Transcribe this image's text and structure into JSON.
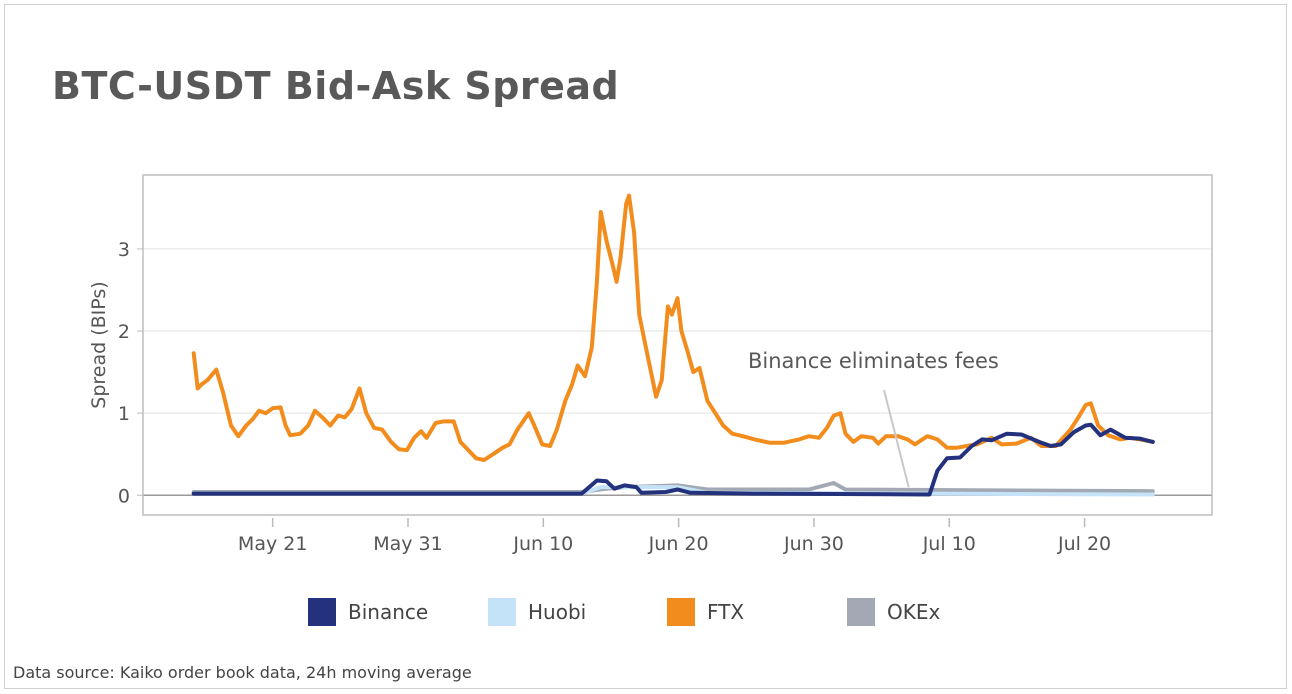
{
  "title": "BTC-USDT Bid-Ask Spread",
  "footer": "Data source: Kaiko order book data, 24h moving average",
  "chart_data": {
    "type": "line",
    "title": "BTC-USDT Bid-Ask Spread",
    "ylabel": "Spread (BIPs)",
    "xlabel": "",
    "ylim": [
      -0.24,
      3.9
    ],
    "xlim": [
      "05-11 10:00",
      "07-29 10:00"
    ],
    "yticks": [
      0,
      1,
      2,
      3
    ],
    "xticks": [
      {
        "date": "05-21 00:00",
        "label": "May 21"
      },
      {
        "date": "05-31 00:00",
        "label": "May 31"
      },
      {
        "date": "06-10 00:00",
        "label": "Jun 10"
      },
      {
        "date": "06-20 00:00",
        "label": "Jun 20"
      },
      {
        "date": "06-30 00:00",
        "label": "Jun 30"
      },
      {
        "date": "07-10 00:00",
        "label": "Jul 10"
      },
      {
        "date": "07-20 00:00",
        "label": "Jul 20"
      }
    ],
    "grid": "horizontal",
    "legend_position": "bottom",
    "annotation": {
      "text": "Binance eliminates fees",
      "date": "07-07 00:00",
      "value": 0.05
    },
    "series": [
      {
        "name": "Binance",
        "color": "#24317d",
        "points": [
          [
            "05-15 04:00",
            0.02
          ],
          [
            "06-12 20:00",
            0.02
          ],
          [
            "06-13 23:00",
            0.18
          ],
          [
            "06-14 16:00",
            0.17
          ],
          [
            "06-15 06:00",
            0.08
          ],
          [
            "06-16 00:00",
            0.12
          ],
          [
            "06-16 21:00",
            0.1
          ],
          [
            "06-17 06:00",
            0.03
          ],
          [
            "06-19 01:00",
            0.04
          ],
          [
            "06-19 22:00",
            0.07
          ],
          [
            "06-20 21:00",
            0.03
          ],
          [
            "06-25 15:00",
            0.02
          ],
          [
            "07-08 13:00",
            0.01
          ],
          [
            "07-09 03:00",
            0.3
          ],
          [
            "07-09 20:00",
            0.45
          ],
          [
            "07-10 19:00",
            0.46
          ],
          [
            "07-11 16:00",
            0.6
          ],
          [
            "07-12 10:00",
            0.68
          ],
          [
            "07-13 03:00",
            0.67
          ],
          [
            "07-14 06:00",
            0.75
          ],
          [
            "07-15 08:00",
            0.74
          ],
          [
            "07-16 19:00",
            0.64
          ],
          [
            "07-17 12:00",
            0.6
          ],
          [
            "07-18 06:00",
            0.62
          ],
          [
            "07-19 05:00",
            0.77
          ],
          [
            "07-20 02:00",
            0.85
          ],
          [
            "07-20 11:00",
            0.86
          ],
          [
            "07-21 04:00",
            0.73
          ],
          [
            "07-21 22:00",
            0.8
          ],
          [
            "07-23 00:00",
            0.7
          ],
          [
            "07-24 02:00",
            0.69
          ],
          [
            "07-25 01:00",
            0.65
          ]
        ]
      },
      {
        "name": "Huobi",
        "color": "#c5e3f8",
        "points": [
          [
            "05-15 04:00",
            0.02
          ],
          [
            "06-12 20:00",
            0.02
          ],
          [
            "06-14 06:00",
            0.1
          ],
          [
            "06-16 00:00",
            0.1
          ],
          [
            "06-19 22:00",
            0.1
          ],
          [
            "06-22 03:00",
            0.03
          ],
          [
            "07-25 01:00",
            0.01
          ]
        ]
      },
      {
        "name": "FTX",
        "color": "#f28c1c",
        "points": [
          [
            "05-15 04:00",
            1.73
          ],
          [
            "05-15 11:00",
            1.3
          ],
          [
            "05-15 18:00",
            1.35
          ],
          [
            "05-16 04:00",
            1.4
          ],
          [
            "05-16 20:00",
            1.53
          ],
          [
            "05-17 08:00",
            1.25
          ],
          [
            "05-17 22:00",
            0.85
          ],
          [
            "05-18 11:00",
            0.72
          ],
          [
            "05-19 01:00",
            0.85
          ],
          [
            "05-19 13:00",
            0.93
          ],
          [
            "05-20 00:00",
            1.03
          ],
          [
            "05-20 12:00",
            1.0
          ],
          [
            "05-21 00:00",
            1.06
          ],
          [
            "05-21 14:00",
            1.07
          ],
          [
            "05-21 23:00",
            0.85
          ],
          [
            "05-22 07:00",
            0.73
          ],
          [
            "05-23 01:00",
            0.75
          ],
          [
            "05-23 15:00",
            0.85
          ],
          [
            "05-24 03:00",
            1.03
          ],
          [
            "05-24 16:00",
            0.95
          ],
          [
            "05-25 06:00",
            0.85
          ],
          [
            "05-25 20:00",
            0.97
          ],
          [
            "05-26 08:00",
            0.95
          ],
          [
            "05-26 20:00",
            1.05
          ],
          [
            "05-27 10:00",
            1.3
          ],
          [
            "05-27 22:00",
            1.0
          ],
          [
            "05-28 12:00",
            0.82
          ],
          [
            "05-29 02:00",
            0.8
          ],
          [
            "05-29 18:00",
            0.65
          ],
          [
            "05-30 08:00",
            0.56
          ],
          [
            "05-30 22:00",
            0.55
          ],
          [
            "05-31 11:00",
            0.7
          ],
          [
            "05-31 23:00",
            0.78
          ],
          [
            "06-01 09:00",
            0.7
          ],
          [
            "06-02 01:00",
            0.88
          ],
          [
            "06-02 15:00",
            0.9
          ],
          [
            "06-03 09:00",
            0.9
          ],
          [
            "06-03 21:00",
            0.65
          ],
          [
            "06-04 11:00",
            0.55
          ],
          [
            "06-05 01:00",
            0.45
          ],
          [
            "06-05 15:00",
            0.43
          ],
          [
            "06-06 07:00",
            0.5
          ],
          [
            "06-07 00:00",
            0.58
          ],
          [
            "06-07 12:00",
            0.62
          ],
          [
            "06-08 02:00",
            0.8
          ],
          [
            "06-08 22:00",
            1.0
          ],
          [
            "06-09 08:00",
            0.85
          ],
          [
            "06-09 22:00",
            0.62
          ],
          [
            "06-10 12:00",
            0.6
          ],
          [
            "06-11 00:00",
            0.8
          ],
          [
            "06-11 15:00",
            1.15
          ],
          [
            "06-12 03:00",
            1.35
          ],
          [
            "06-12 13:00",
            1.58
          ],
          [
            "06-13 02:00",
            1.45
          ],
          [
            "06-13 14:00",
            1.8
          ],
          [
            "06-13 23:00",
            2.6
          ],
          [
            "06-14 06:00",
            3.45
          ],
          [
            "06-14 16:00",
            3.1
          ],
          [
            "06-15 03:00",
            2.8
          ],
          [
            "06-15 10:00",
            2.6
          ],
          [
            "06-15 17:00",
            2.9
          ],
          [
            "06-16 03:00",
            3.55
          ],
          [
            "06-16 08:00",
            3.65
          ],
          [
            "06-16 17:00",
            3.2
          ],
          [
            "06-17 02:00",
            2.2
          ],
          [
            "06-17 14:00",
            1.8
          ],
          [
            "06-17 23:00",
            1.5
          ],
          [
            "06-18 08:00",
            1.2
          ],
          [
            "06-18 18:00",
            1.4
          ],
          [
            "06-19 05:00",
            2.3
          ],
          [
            "06-19 12:00",
            2.2
          ],
          [
            "06-19 22:00",
            2.4
          ],
          [
            "06-20 05:00",
            2.0
          ],
          [
            "06-20 16:00",
            1.75
          ],
          [
            "06-21 02:00",
            1.5
          ],
          [
            "06-21 13:00",
            1.55
          ],
          [
            "06-22 03:00",
            1.15
          ],
          [
            "06-22 17:00",
            1.0
          ],
          [
            "06-23 07:00",
            0.85
          ],
          [
            "06-23 23:00",
            0.75
          ],
          [
            "06-24 18:00",
            0.72
          ],
          [
            "06-25 15:00",
            0.68
          ],
          [
            "06-26 17:00",
            0.64
          ],
          [
            "06-27 19:00",
            0.64
          ],
          [
            "06-28 22:00",
            0.68
          ],
          [
            "06-29 15:00",
            0.72
          ],
          [
            "06-30 09:00",
            0.7
          ],
          [
            "06-30 23:00",
            0.82
          ],
          [
            "07-01 11:00",
            0.97
          ],
          [
            "07-01 23:00",
            1.0
          ],
          [
            "07-02 08:00",
            0.75
          ],
          [
            "07-02 22:00",
            0.65
          ],
          [
            "07-03 12:00",
            0.72
          ],
          [
            "07-04 09:00",
            0.7
          ],
          [
            "07-04 18:00",
            0.63
          ],
          [
            "07-05 08:00",
            0.72
          ],
          [
            "07-06 05:00",
            0.72
          ],
          [
            "07-06 22:00",
            0.68
          ],
          [
            "07-07 11:00",
            0.62
          ],
          [
            "07-08 09:00",
            0.72
          ],
          [
            "07-09 03:00",
            0.68
          ],
          [
            "07-09 20:00",
            0.58
          ],
          [
            "07-10 14:00",
            0.58
          ],
          [
            "07-11 07:00",
            0.6
          ],
          [
            "07-12 01:00",
            0.62
          ],
          [
            "07-13 03:00",
            0.7
          ],
          [
            "07-13 21:00",
            0.62
          ],
          [
            "07-14 23:00",
            0.63
          ],
          [
            "07-16 01:00",
            0.7
          ],
          [
            "07-16 19:00",
            0.6
          ],
          [
            "07-17 21:00",
            0.6
          ],
          [
            "07-18 23:00",
            0.8
          ],
          [
            "07-19 13:00",
            0.95
          ],
          [
            "07-20 02:00",
            1.1
          ],
          [
            "07-20 11:00",
            1.12
          ],
          [
            "07-21 00:00",
            0.85
          ],
          [
            "07-21 18:00",
            0.73
          ],
          [
            "07-22 15:00",
            0.68
          ],
          [
            "07-23 09:00",
            0.7
          ],
          [
            "07-24 02:00",
            0.68
          ],
          [
            "07-25 01:00",
            0.65
          ]
        ]
      },
      {
        "name": "OKEx",
        "color": "#a2a9b4",
        "points": [
          [
            "05-15 04:00",
            0.04
          ],
          [
            "06-12 20:00",
            0.04
          ],
          [
            "06-14 16:00",
            0.08
          ],
          [
            "06-16 00:00",
            0.1
          ],
          [
            "06-19 22:00",
            0.12
          ],
          [
            "06-22 03:00",
            0.07
          ],
          [
            "06-29 15:00",
            0.07
          ],
          [
            "07-01 11:00",
            0.15
          ],
          [
            "07-02 08:00",
            0.07
          ],
          [
            "07-25 01:00",
            0.05
          ]
        ]
      }
    ]
  }
}
